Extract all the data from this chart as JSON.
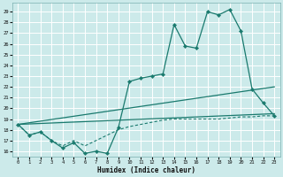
{
  "xlabel": "Humidex (Indice chaleur)",
  "bg_color": "#cceaea",
  "grid_color": "#b0d8d8",
  "line_color": "#1a7a6e",
  "x_ticks": [
    0,
    1,
    2,
    3,
    4,
    5,
    6,
    7,
    8,
    9,
    10,
    11,
    12,
    13,
    14,
    15,
    16,
    17,
    18,
    19,
    20,
    21,
    22,
    23
  ],
  "y_ticks": [
    16,
    17,
    18,
    19,
    20,
    21,
    22,
    23,
    24,
    25,
    26,
    27,
    28,
    29
  ],
  "xlim": [
    -0.5,
    23.5
  ],
  "ylim": [
    15.5,
    29.8
  ],
  "main_x": [
    0,
    1,
    2,
    3,
    4,
    5,
    6,
    7,
    8,
    9,
    10,
    11,
    12,
    13,
    14,
    15,
    16,
    17,
    18,
    19,
    20,
    21,
    22,
    23
  ],
  "main_y": [
    18.5,
    17.5,
    17.8,
    17.0,
    16.3,
    16.8,
    15.8,
    16.0,
    15.8,
    18.2,
    22.5,
    22.8,
    23.0,
    23.2,
    27.8,
    25.8,
    25.6,
    29.0,
    28.7,
    29.2,
    27.2,
    21.8,
    20.5,
    19.3
  ],
  "line1_x": [
    0,
    23
  ],
  "line1_y": [
    18.5,
    22.0
  ],
  "line2_x": [
    0,
    23
  ],
  "line2_y": [
    18.5,
    19.5
  ],
  "dash_x": [
    0,
    1,
    2,
    3,
    4,
    5,
    6,
    7,
    8,
    9,
    10,
    11,
    12,
    13,
    14,
    15,
    16,
    17,
    18,
    19,
    20,
    21,
    22,
    23
  ],
  "dash_y": [
    18.5,
    17.5,
    17.8,
    17.0,
    16.5,
    17.0,
    16.5,
    17.0,
    17.5,
    18.0,
    18.3,
    18.5,
    18.7,
    18.9,
    19.0,
    19.0,
    19.0,
    19.0,
    19.0,
    19.1,
    19.2,
    19.2,
    19.3,
    19.3
  ]
}
